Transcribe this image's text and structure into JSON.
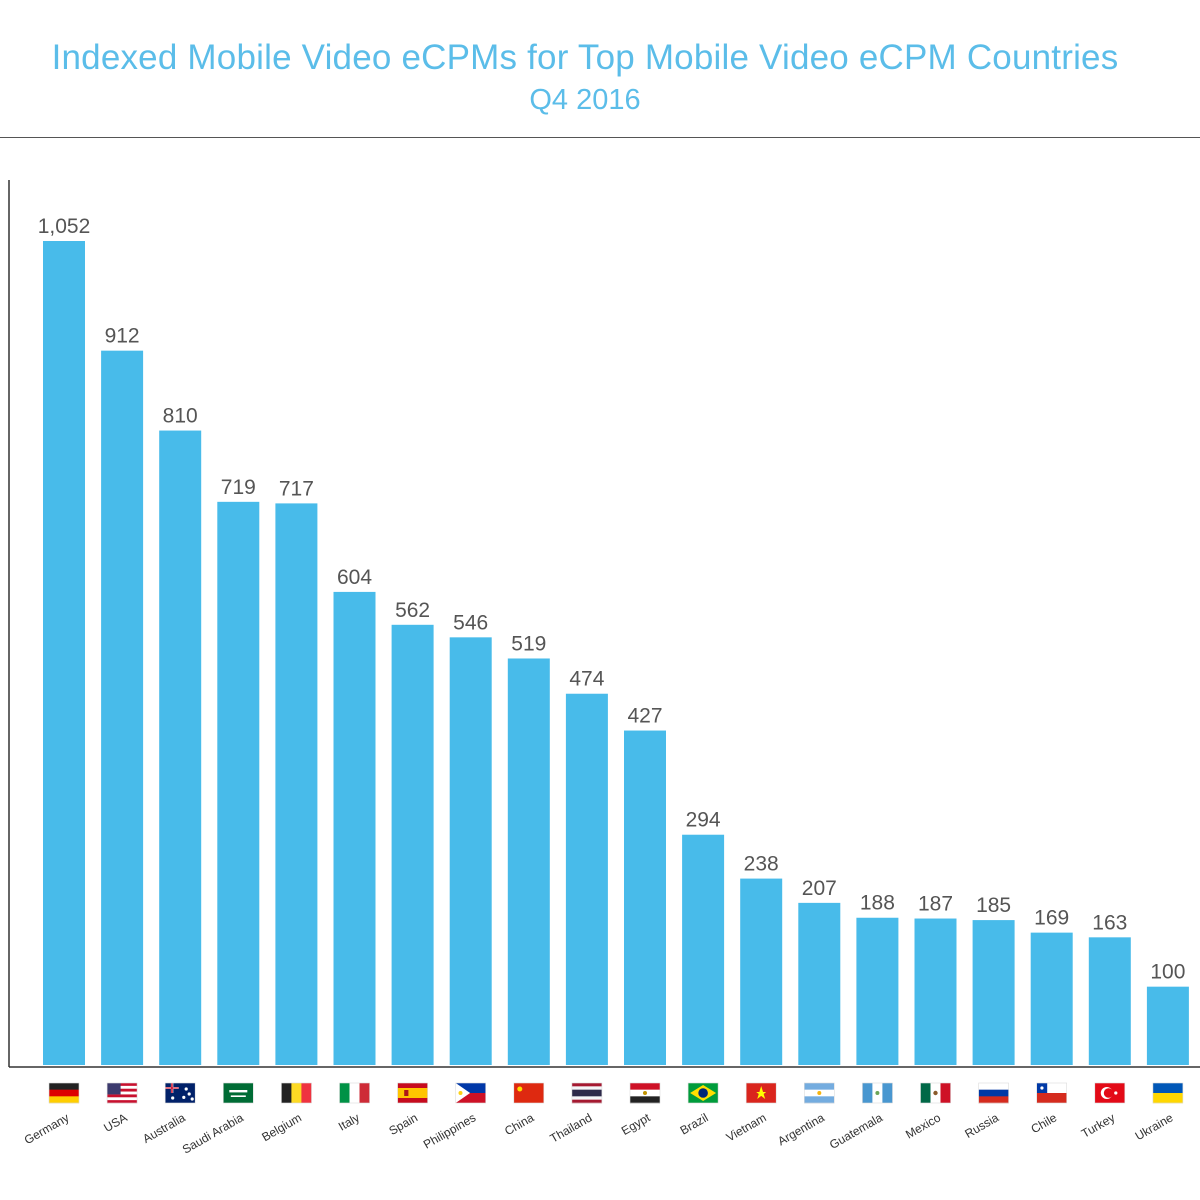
{
  "chart_data": {
    "type": "bar",
    "title": "Indexed Mobile Video eCPMs for Top Mobile Video eCPM Countries",
    "subtitle": "Q4 2016",
    "xlabel": "",
    "ylabel": "",
    "ylim": [
      0,
      1130
    ],
    "grid": false,
    "legend": "none",
    "bar_color": "#48bbea",
    "title_color": "#5bbde9",
    "categories": [
      "Germany",
      "USA",
      "Australia",
      "Saudi Arabia",
      "Belgium",
      "Italy",
      "Spain",
      "Philippines",
      "China",
      "Thailand",
      "Egypt",
      "Brazil",
      "Vietnam",
      "Argentina",
      "Guatemala",
      "Mexico",
      "Russia",
      "Chile",
      "Turkey",
      "Ukraine"
    ],
    "values": [
      1052,
      912,
      810,
      719,
      717,
      604,
      562,
      546,
      519,
      474,
      427,
      294,
      238,
      207,
      188,
      187,
      185,
      169,
      163,
      100
    ],
    "value_labels": [
      "1,052",
      "912",
      "810",
      "719",
      "717",
      "604",
      "562",
      "546",
      "519",
      "474",
      "427",
      "294",
      "238",
      "207",
      "188",
      "187",
      "185",
      "169",
      "163",
      "100"
    ],
    "flags": [
      "germany-flag",
      "usa-flag",
      "australia-flag",
      "saudi-arabia-flag",
      "belgium-flag",
      "italy-flag",
      "spain-flag",
      "philippines-flag",
      "china-flag",
      "thailand-flag",
      "egypt-flag",
      "brazil-flag",
      "vietnam-flag",
      "argentina-flag",
      "guatemala-flag",
      "mexico-flag",
      "russia-flag",
      "chile-flag",
      "turkey-flag",
      "ukraine-flag"
    ]
  }
}
